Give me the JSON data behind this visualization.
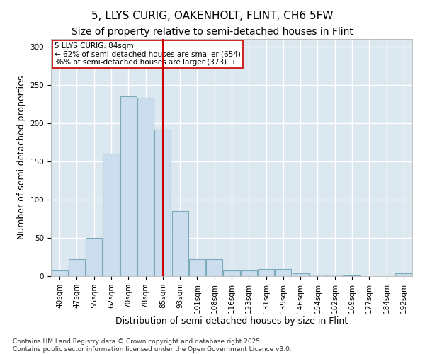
{
  "title_line1": "5, LLYS CURIG, OAKENHOLT, FLINT, CH6 5FW",
  "title_line2": "Size of property relative to semi-detached houses in Flint",
  "xlabel": "Distribution of semi-detached houses by size in Flint",
  "ylabel": "Number of semi-detached properties",
  "categories": [
    "40sqm",
    "47sqm",
    "55sqm",
    "62sqm",
    "70sqm",
    "78sqm",
    "85sqm",
    "93sqm",
    "101sqm",
    "108sqm",
    "116sqm",
    "123sqm",
    "131sqm",
    "139sqm",
    "146sqm",
    "154sqm",
    "162sqm",
    "169sqm",
    "177sqm",
    "184sqm",
    "192sqm"
  ],
  "values": [
    7,
    22,
    50,
    160,
    235,
    233,
    192,
    85,
    22,
    22,
    7,
    7,
    9,
    9,
    4,
    2,
    2,
    1,
    0,
    0,
    4
  ],
  "bar_color": "#ccdded",
  "bar_edge_color": "#7aaabb",
  "vline_x_index": 6,
  "vline_color": "#cc0000",
  "annotation_title": "5 LLYS CURIG: 84sqm",
  "annotation_line2": "← 62% of semi-detached houses are smaller (654)",
  "annotation_line3": "36% of semi-detached houses are larger (373) →",
  "annotation_box_color": "#ffffff",
  "annotation_box_edge": "#cc0000",
  "ylim": [
    0,
    310
  ],
  "yticks": [
    0,
    50,
    100,
    150,
    200,
    250,
    300
  ],
  "fig_bg_color": "#ffffff",
  "axes_bg_color": "#dce8f0",
  "grid_color": "#ffffff",
  "footer": "Contains HM Land Registry data © Crown copyright and database right 2025.\nContains public sector information licensed under the Open Government Licence v3.0.",
  "title_fontsize": 11,
  "subtitle_fontsize": 10,
  "axis_label_fontsize": 9,
  "tick_fontsize": 7.5,
  "annotation_fontsize": 7.5,
  "footer_fontsize": 6.5
}
